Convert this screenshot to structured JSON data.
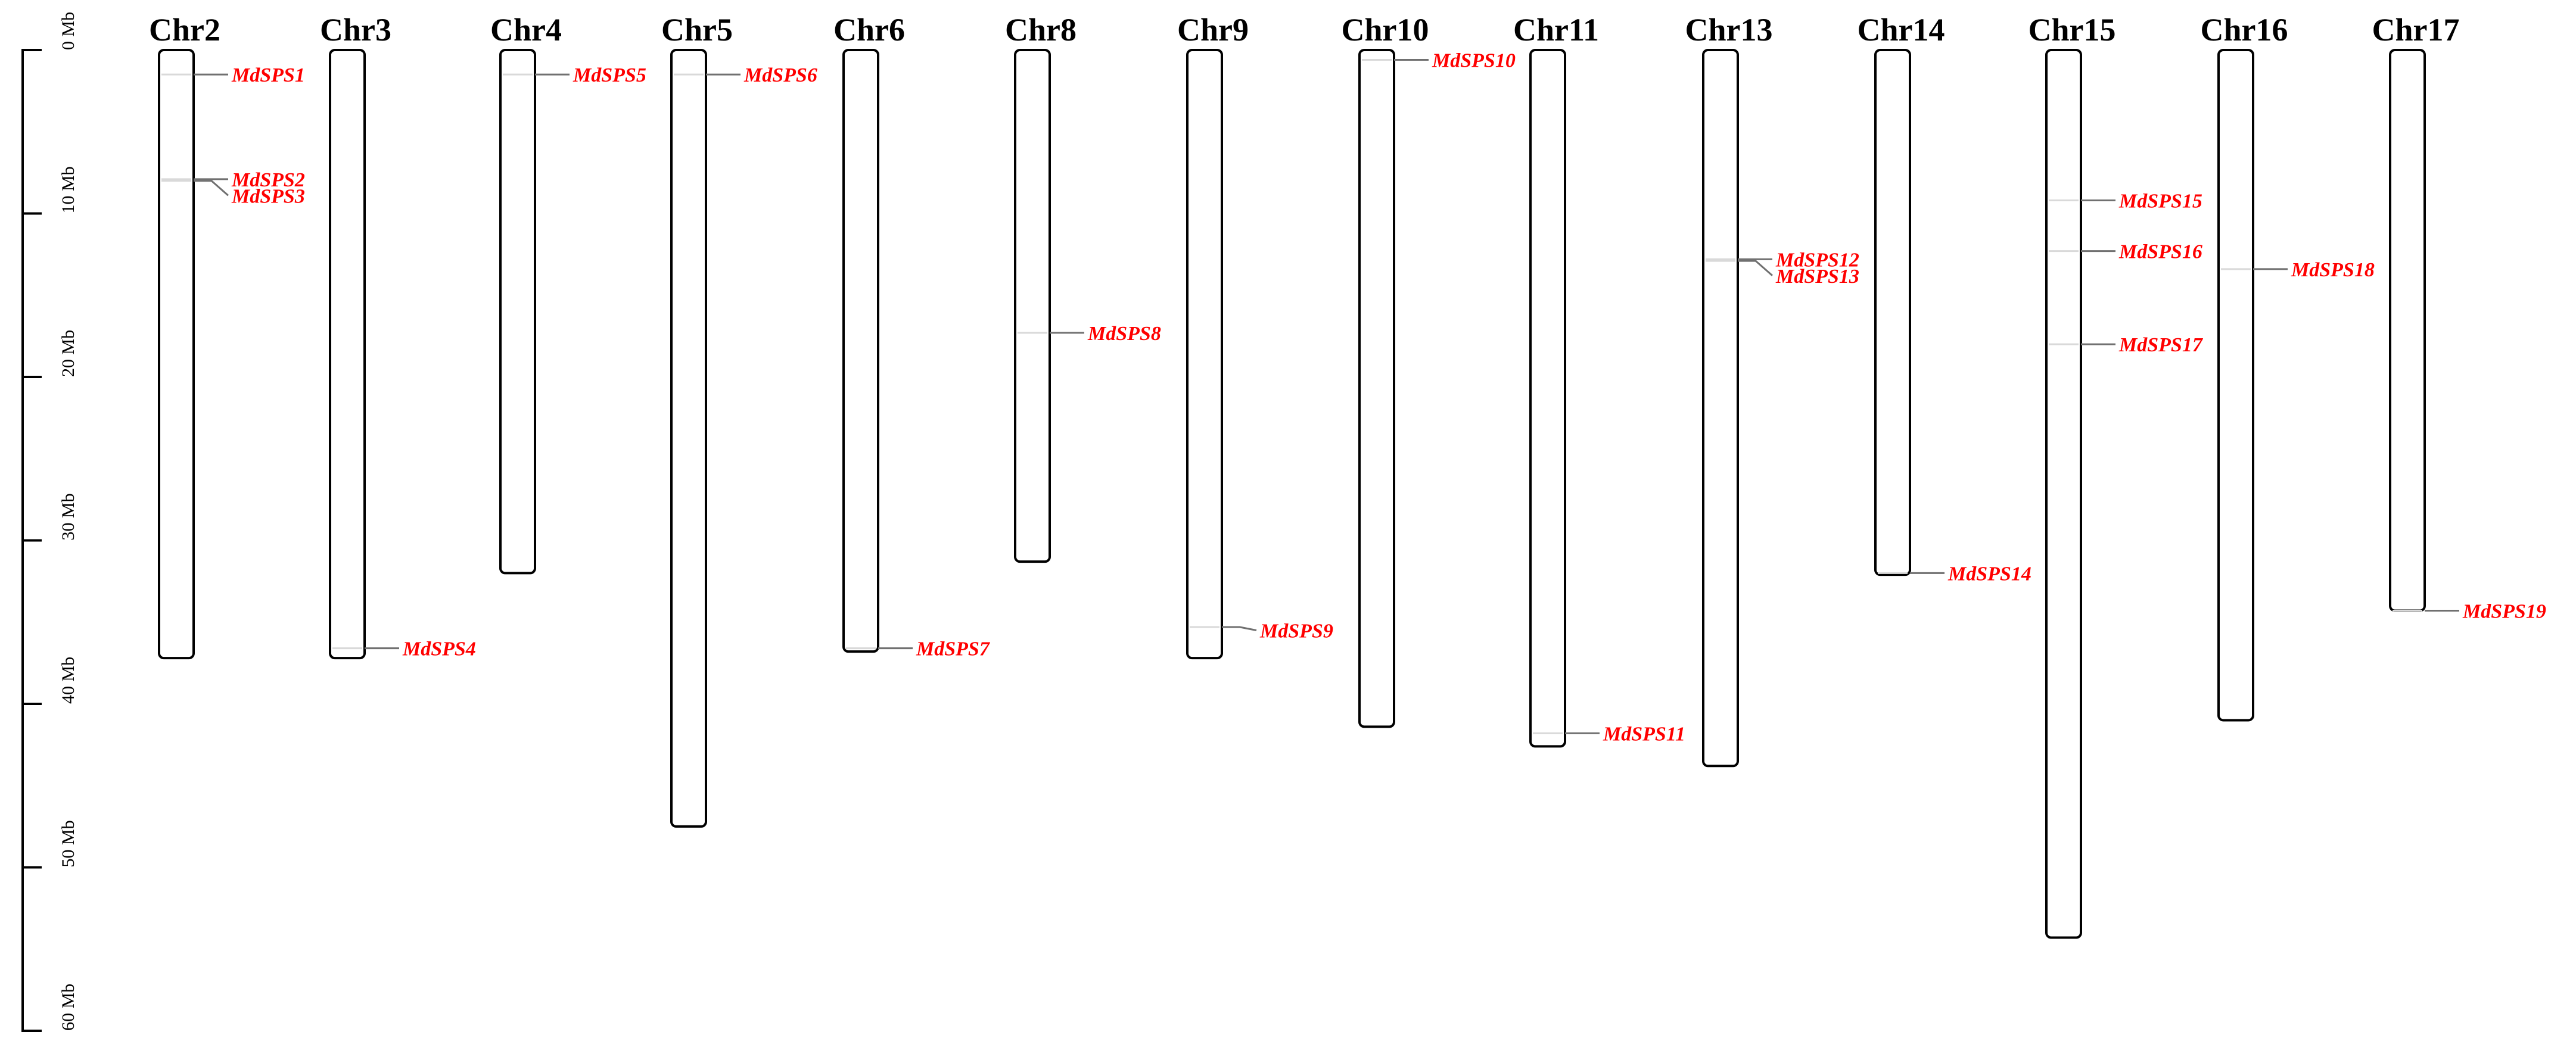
{
  "colors": {
    "gene_label": "#ff0000",
    "chromosome_outline": "#000000",
    "connector": "#707070",
    "gene_mark": "#d9d9d9"
  },
  "scale": {
    "unit": "Mb",
    "range": [
      0,
      60
    ],
    "ticks": [
      {
        "value": 0,
        "label": "0 Mb"
      },
      {
        "value": 10,
        "label": "10 Mb"
      },
      {
        "value": 20,
        "label": "20 Mb"
      },
      {
        "value": 30,
        "label": "30 Mb"
      },
      {
        "value": 40,
        "label": "40 Mb"
      },
      {
        "value": 50,
        "label": "50 Mb"
      },
      {
        "value": 60,
        "label": "60 Mb"
      }
    ]
  },
  "chromosomes": [
    {
      "name": "Chr2",
      "length": 37.2,
      "genes": [
        {
          "name": "MdSPS1",
          "pos": 1.5,
          "label_pos": 1.5
        },
        {
          "name": "MdSPS2",
          "pos": 7.9,
          "label_pos": 7.9
        },
        {
          "name": "MdSPS3",
          "pos": 8.0,
          "label_pos": 8.9
        }
      ]
    },
    {
      "name": "Chr3",
      "length": 37.2,
      "genes": [
        {
          "name": "MdSPS4",
          "pos": 36.6,
          "label_pos": 36.6
        }
      ]
    },
    {
      "name": "Chr4",
      "length": 32.0,
      "genes": [
        {
          "name": "MdSPS5",
          "pos": 1.5,
          "label_pos": 1.5
        }
      ]
    },
    {
      "name": "Chr5",
      "length": 47.5,
      "genes": [
        {
          "name": "MdSPS6",
          "pos": 1.5,
          "label_pos": 1.5
        }
      ]
    },
    {
      "name": "Chr6",
      "length": 36.8,
      "genes": [
        {
          "name": "MdSPS7",
          "pos": 36.6,
          "label_pos": 36.6
        }
      ]
    },
    {
      "name": "Chr8",
      "length": 31.3,
      "genes": [
        {
          "name": "MdSPS8",
          "pos": 17.3,
          "label_pos": 17.3
        }
      ]
    },
    {
      "name": "Chr9",
      "length": 37.2,
      "genes": [
        {
          "name": "MdSPS9",
          "pos": 35.3,
          "label_pos": 35.5
        }
      ]
    },
    {
      "name": "Chr10",
      "length": 41.4,
      "genes": [
        {
          "name": "MdSPS10",
          "pos": 0.6,
          "label_pos": 0.6
        }
      ]
    },
    {
      "name": "Chr11",
      "length": 42.6,
      "genes": [
        {
          "name": "MdSPS11",
          "pos": 41.8,
          "label_pos": 41.8
        }
      ]
    },
    {
      "name": "Chr13",
      "length": 43.8,
      "genes": [
        {
          "name": "MdSPS12",
          "pos": 12.8,
          "label_pos": 12.8
        },
        {
          "name": "MdSPS13",
          "pos": 12.9,
          "label_pos": 13.8
        }
      ]
    },
    {
      "name": "Chr14",
      "length": 32.1,
      "genes": [
        {
          "name": "MdSPS14",
          "pos": 32.0,
          "label_pos": 32.0
        }
      ]
    },
    {
      "name": "Chr15",
      "length": 54.3,
      "genes": [
        {
          "name": "MdSPS15",
          "pos": 9.2,
          "label_pos": 9.2
        },
        {
          "name": "MdSPS16",
          "pos": 12.3,
          "label_pos": 12.3
        },
        {
          "name": "MdSPS17",
          "pos": 18.0,
          "label_pos": 18.0
        }
      ]
    },
    {
      "name": "Chr16",
      "length": 41.0,
      "genes": [
        {
          "name": "MdSPS18",
          "pos": 13.4,
          "label_pos": 13.4
        }
      ]
    },
    {
      "name": "Chr17",
      "length": 34.3,
      "genes": [
        {
          "name": "MdSPS19",
          "pos": 34.3,
          "label_pos": 34.3
        }
      ]
    }
  ]
}
